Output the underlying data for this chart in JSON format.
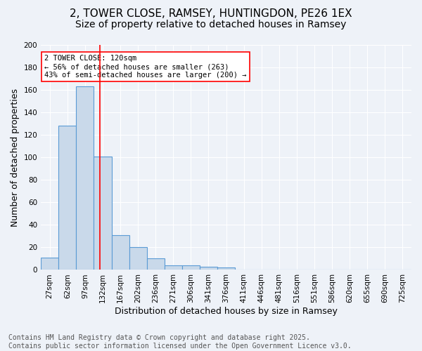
{
  "title_line1": "2, TOWER CLOSE, RAMSEY, HUNTINGDON, PE26 1EX",
  "title_line2": "Size of property relative to detached houses in Ramsey",
  "xlabel": "Distribution of detached houses by size in Ramsey",
  "ylabel": "Number of detached properties",
  "footnote": "Contains HM Land Registry data © Crown copyright and database right 2025.\nContains public sector information licensed under the Open Government Licence v3.0.",
  "bin_labels": [
    "27sqm",
    "62sqm",
    "97sqm",
    "132sqm",
    "167sqm",
    "202sqm",
    "236sqm",
    "271sqm",
    "306sqm",
    "341sqm",
    "376sqm",
    "411sqm",
    "446sqm",
    "481sqm",
    "516sqm",
    "551sqm",
    "586sqm",
    "620sqm",
    "655sqm",
    "690sqm",
    "725sqm"
  ],
  "bar_values": [
    11,
    128,
    163,
    101,
    31,
    20,
    10,
    4,
    4,
    3,
    2,
    0,
    0,
    0,
    0,
    0,
    0,
    0,
    0,
    0,
    0
  ],
  "bar_color": "#c9d9ea",
  "bar_edge_color": "#5b9bd5",
  "vline_x": 2.85,
  "vline_color": "red",
  "annotation_text": "2 TOWER CLOSE: 120sqm\n← 56% of detached houses are smaller (263)\n43% of semi-detached houses are larger (200) →",
  "annotation_box_color": "white",
  "annotation_box_edge_color": "red",
  "ylim": [
    0,
    200
  ],
  "yticks": [
    0,
    20,
    40,
    60,
    80,
    100,
    120,
    140,
    160,
    180,
    200
  ],
  "background_color": "#eef2f8",
  "grid_color": "white",
  "title_fontsize": 11,
  "subtitle_fontsize": 10,
  "axis_label_fontsize": 9,
  "tick_fontsize": 7.5,
  "annotation_fontsize": 7.5,
  "footnote_fontsize": 7
}
